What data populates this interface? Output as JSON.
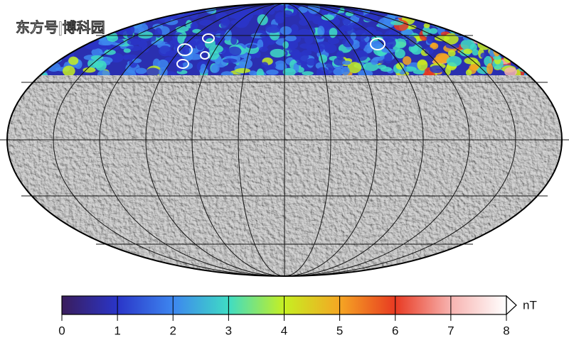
{
  "watermark": "东方号|博科园",
  "colorbar": {
    "lim": [
      0,
      8
    ],
    "ticks": [
      0,
      1,
      2,
      3,
      4,
      5,
      6,
      7,
      8
    ],
    "unit": "nT",
    "colors": [
      "#3a1d5c",
      "#2a35c8",
      "#3d86ef",
      "#3fdcc4",
      "#c6ef22",
      "#f5a623",
      "#e83a22",
      "#f7b3b0",
      "#ffffff"
    ]
  }
}
